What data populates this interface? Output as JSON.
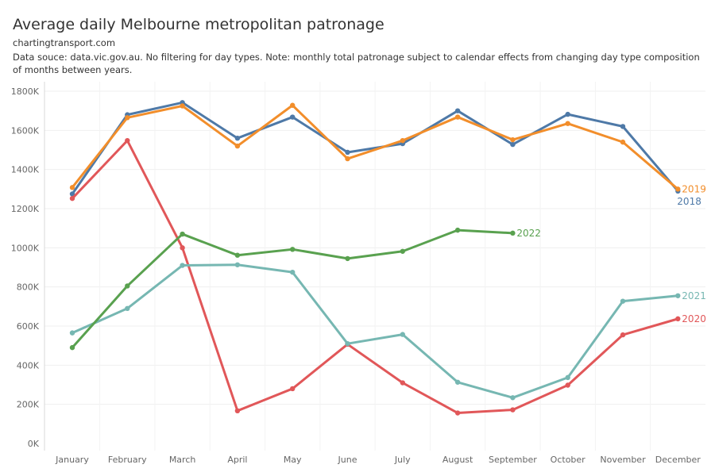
{
  "header": {
    "title": "Average daily Melbourne metropolitan patronage",
    "source": "chartingtransport.com",
    "note": "Data souce: data.vic.gov.au. No filtering for day types. Note: monthly total patronage subject to calendar effects from changing day type composition of months between years."
  },
  "chart_data": {
    "type": "line",
    "title": "Average daily Melbourne metropolitan patronage",
    "xlabel": "",
    "ylabel": "",
    "ylim": [
      0,
      1800000
    ],
    "yticks": [
      0,
      200000,
      400000,
      600000,
      800000,
      1000000,
      1200000,
      1400000,
      1600000,
      1800000
    ],
    "ytick_labels": [
      "0K",
      "200K",
      "400K",
      "600K",
      "800K",
      "1000K",
      "1200K",
      "1400K",
      "1600K",
      "1800K"
    ],
    "grid": true,
    "legend": "inline labels at line ends",
    "categories": [
      "January",
      "February",
      "March",
      "April",
      "May",
      "June",
      "July",
      "August",
      "September",
      "October",
      "November",
      "December"
    ],
    "series": [
      {
        "name": "2018",
        "color": "#4e79a7",
        "label_below": true,
        "values": [
          1275000,
          1680000,
          1742000,
          1560000,
          1668000,
          1488000,
          1532000,
          1700000,
          1528000,
          1682000,
          1620000,
          1290000
        ]
      },
      {
        "name": "2019",
        "color": "#f28e2b",
        "label_below": false,
        "values": [
          1308000,
          1665000,
          1725000,
          1520000,
          1728000,
          1455000,
          1548000,
          1668000,
          1552000,
          1635000,
          1540000,
          1300000
        ]
      },
      {
        "name": "2020",
        "color": "#e15759",
        "label_below": false,
        "values": [
          1252000,
          1548000,
          1000000,
          167000,
          280000,
          507000,
          310000,
          156000,
          172000,
          298000,
          555000,
          637000
        ]
      },
      {
        "name": "2021",
        "color": "#76b7b2",
        "label_below": false,
        "values": [
          565000,
          690000,
          910000,
          913000,
          875000,
          510000,
          557000,
          313000,
          234000,
          337000,
          727000,
          755000
        ]
      },
      {
        "name": "2022",
        "color": "#59a14f",
        "label_below": false,
        "values": [
          490000,
          805000,
          1070000,
          962000,
          992000,
          945000,
          982000,
          1090000,
          1075000,
          null,
          null,
          null
        ]
      }
    ]
  }
}
